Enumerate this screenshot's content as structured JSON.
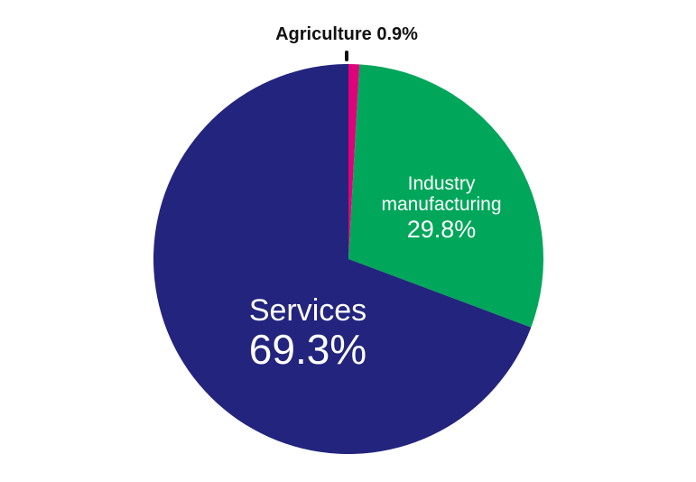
{
  "chart_data": {
    "type": "pie",
    "slices": [
      {
        "label": "Agriculture",
        "value": 0.9,
        "value_label": "0.9%",
        "color": "#e0007a"
      },
      {
        "label": "Industry manufacturing",
        "label_lines": [
          "Industry",
          "manufacturing"
        ],
        "value": 29.8,
        "value_label": "29.8%",
        "color": "#00a659"
      },
      {
        "label": "Services",
        "value": 69.3,
        "value_label": "69.3%",
        "color": "#22247d"
      }
    ],
    "start_angle": "12 o'clock",
    "direction": "clockwise",
    "callout": "Agriculture 0.9%"
  }
}
